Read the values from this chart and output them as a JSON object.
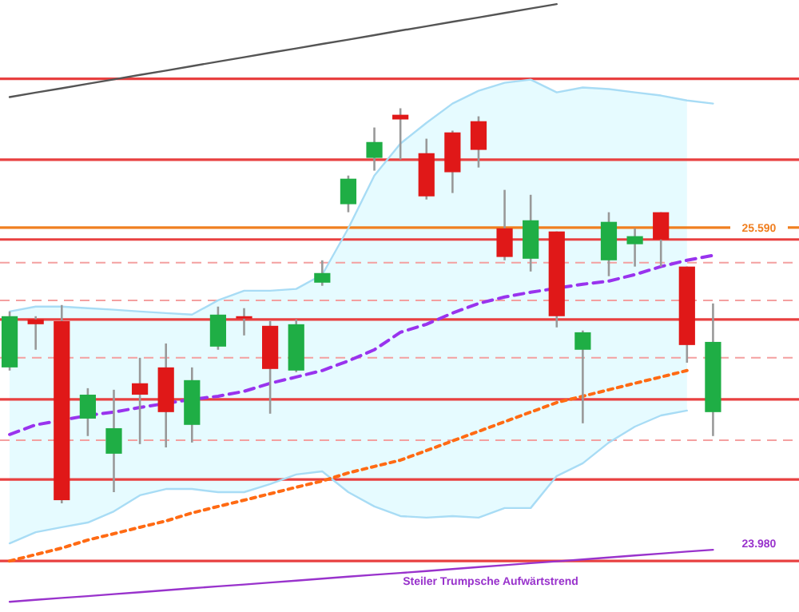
{
  "chart_data": {
    "type": "candlestick",
    "ylim": [
      23.63,
      26.75
    ],
    "tick_labels": "y",
    "yticks": [
      {
        "value": 25.59,
        "label": "25.590"
      },
      {
        "value": 23.98,
        "label": "23.980"
      }
    ],
    "categories": [
      null,
      null,
      null,
      null,
      null,
      null,
      null,
      null,
      null,
      null,
      null,
      null,
      null,
      null,
      null,
      null,
      null,
      null,
      null,
      null,
      null,
      null,
      null,
      null,
      null,
      null,
      null,
      null
    ],
    "ohlc": [
      [
        24.877,
        25.162,
        24.861,
        25.138
      ],
      [
        25.122,
        25.138,
        24.967,
        25.097
      ],
      [
        25.113,
        25.195,
        24.184,
        24.2
      ],
      [
        24.616,
        24.771,
        24.527,
        24.738
      ],
      [
        24.437,
        24.763,
        24.241,
        24.567
      ],
      [
        24.796,
        24.926,
        24.486,
        24.738
      ],
      [
        24.877,
        24.999,
        24.469,
        24.649
      ],
      [
        24.584,
        24.877,
        24.494,
        24.812
      ],
      [
        24.983,
        25.187,
        24.967,
        25.146
      ],
      [
        25.138,
        25.179,
        25.04,
        25.13
      ],
      [
        25.089,
        25.113,
        24.641,
        24.869
      ],
      [
        24.861,
        25.122,
        24.853,
        25.097
      ],
      [
        25.309,
        25.423,
        25.293,
        25.358
      ],
      [
        25.709,
        25.855,
        25.668,
        25.839
      ],
      [
        25.945,
        26.1,
        25.88,
        26.026
      ],
      [
        26.165,
        26.198,
        25.937,
        26.141
      ],
      [
        25.969,
        26.043,
        25.733,
        25.749
      ],
      [
        26.075,
        26.084,
        25.766,
        25.872
      ],
      [
        26.132,
        26.157,
        25.896,
        25.986
      ],
      [
        25.586,
        25.782,
        25.423,
        25.44
      ],
      [
        25.431,
        25.757,
        25.366,
        25.627
      ],
      [
        25.57,
        25.57,
        25.081,
        25.138
      ],
      [
        24.967,
        25.065,
        24.592,
        25.056
      ],
      [
        25.423,
        25.668,
        25.342,
        25.619
      ],
      [
        25.505,
        25.586,
        25.391,
        25.546
      ],
      [
        25.668,
        25.668,
        25.391,
        25.529
      ],
      [
        25.391,
        25.391,
        24.901,
        24.991
      ],
      [
        24.649,
        25.203,
        24.527,
        25.007
      ]
    ],
    "series": [
      {
        "type": "line",
        "color": "#a8dcf5",
        "line_style": "solid",
        "values": [
          25.162,
          25.187,
          25.187,
          25.179,
          25.171,
          25.162,
          25.154,
          25.146,
          25.219,
          25.268,
          25.268,
          25.277,
          25.35,
          25.586,
          25.855,
          26.018,
          26.124,
          26.222,
          26.287,
          26.328,
          26.344,
          26.279,
          26.304,
          26.296,
          26.279,
          26.263,
          26.238,
          26.222
        ]
      },
      {
        "type": "line",
        "color": "#a8dcf5",
        "line_style": "solid",
        "values": [
          23.98,
          24.037,
          24.062,
          24.086,
          24.143,
          24.225,
          24.257,
          24.257,
          24.241,
          24.241,
          24.282,
          24.331,
          24.347,
          24.241,
          24.168,
          24.119,
          24.111,
          24.119,
          24.111,
          24.16,
          24.16,
          24.323,
          24.388,
          24.494,
          24.575,
          24.632,
          24.657,
          null
        ]
      },
      {
        "type": "line",
        "color": "#9933ee",
        "line_style": "dashed",
        "values": [
          24.535,
          24.584,
          null,
          24.632,
          24.649,
          24.673,
          null,
          24.714,
          24.73,
          24.755,
          24.796,
          24.828,
          24.861,
          24.91,
          24.967,
          25.056,
          25.097,
          25.154,
          25.203,
          25.236,
          25.26,
          null,
          25.301,
          25.317,
          25.35,
          25.391,
          25.423,
          25.448
        ],
        "upper": [
          25.162,
          25.187,
          25.187,
          25.179,
          25.171,
          25.162,
          25.154,
          25.146,
          25.219,
          25.268,
          25.268,
          25.277,
          25.35,
          25.586,
          25.855,
          26.018,
          26.124,
          26.222,
          26.287,
          26.328,
          26.344,
          26.279,
          26.304,
          26.296,
          26.279,
          26.263,
          26.238,
          null
        ],
        "lower": [
          23.98,
          24.037,
          24.062,
          24.086,
          24.143,
          24.225,
          24.257,
          24.257,
          24.241,
          24.241,
          24.282,
          24.331,
          24.347,
          24.241,
          24.168,
          24.119,
          24.111,
          24.119,
          24.111,
          24.16,
          24.16,
          24.323,
          24.388,
          24.494,
          24.575,
          24.632,
          24.657,
          null
        ]
      },
      {
        "type": "line",
        "color": "#ff6a13",
        "line_style": "dotted",
        "values": [
          23.89,
          23.923,
          23.956,
          23.997,
          24.029,
          24.062,
          24.094,
          24.135,
          24.168,
          24.2,
          24.233,
          24.266,
          24.298,
          24.339,
          24.372,
          24.404,
          24.453,
          24.502,
          24.551,
          24.6,
          24.649,
          24.698,
          24.73,
          24.763,
          24.796,
          24.828,
          24.861,
          null
        ]
      },
      {
        "type": "line",
        "color": "#555555",
        "line_style": "solid",
        "values": [
          26.255,
          26.278,
          26.3,
          26.323,
          26.345,
          26.368,
          26.39,
          26.413,
          26.436,
          26.458,
          26.481,
          26.503,
          26.526,
          26.548,
          26.571,
          26.594,
          26.616,
          26.639,
          26.661,
          26.684,
          26.707,
          26.729,
          null,
          null,
          null,
          null,
          null,
          null
        ]
      },
      {
        "type": "line",
        "color": "#9933cc",
        "line_style": "solid",
        "values": [
          23.682,
          23.692,
          23.702,
          23.711,
          23.721,
          23.731,
          23.741,
          23.751,
          23.761,
          23.77,
          23.78,
          23.79,
          23.8,
          23.81,
          23.82,
          23.829,
          23.839,
          23.849,
          23.859,
          23.869,
          23.879,
          23.888,
          23.898,
          23.908,
          23.918,
          23.928,
          23.938,
          23.947
        ]
      }
    ],
    "ref_lines": [
      {
        "axis": "y",
        "value": 26.348,
        "color": "#e84040",
        "line_style": "solid"
      },
      {
        "axis": "y",
        "value": 25.936,
        "color": "#e84040",
        "line_style": "solid"
      },
      {
        "axis": "y",
        "value": 25.529,
        "color": "#e84040",
        "line_style": "solid"
      },
      {
        "axis": "y",
        "value": 25.121,
        "color": "#e84040",
        "line_style": "solid"
      },
      {
        "axis": "y",
        "value": 24.714,
        "color": "#e84040",
        "line_style": "solid"
      },
      {
        "axis": "y",
        "value": 24.306,
        "color": "#e84040",
        "line_style": "solid"
      },
      {
        "axis": "y",
        "value": 23.89,
        "color": "#e84040",
        "line_style": "solid"
      },
      {
        "axis": "y",
        "value": 25.411,
        "color": "#f4a0a0",
        "line_style": "dashed"
      },
      {
        "axis": "y",
        "value": 25.219,
        "color": "#f4a0a0",
        "line_style": "dashed"
      },
      {
        "axis": "y",
        "value": 24.926,
        "color": "#f4a0a0",
        "line_style": "dashed"
      },
      {
        "axis": "y",
        "value": 24.506,
        "color": "#f4a0a0",
        "line_style": "dashed"
      },
      {
        "axis": "y",
        "value": 25.59,
        "color": "#f07f20",
        "line_style": "solid"
      }
    ],
    "annotations": [
      "Steiler Trumpsche Aufwärtstrend"
    ]
  }
}
